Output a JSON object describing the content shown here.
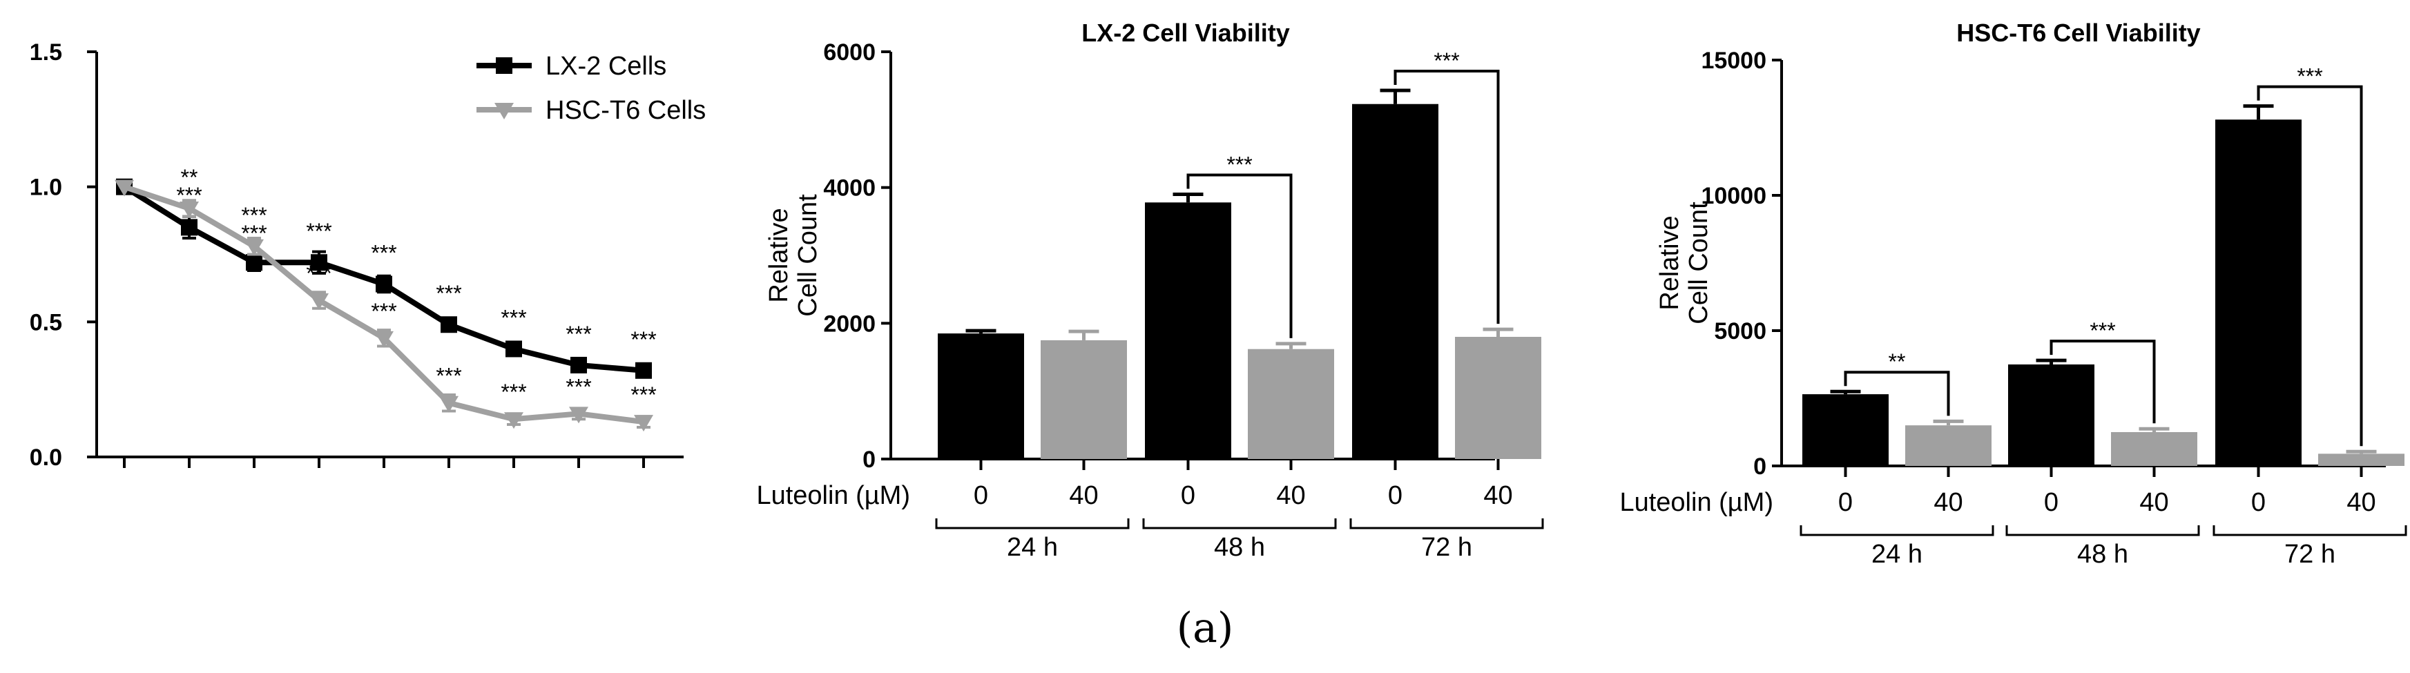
{
  "panel_label": "(a)",
  "colors": {
    "lx2": "#000000",
    "hsc": "#a0a0a0"
  },
  "chart_data": [
    {
      "id": "line",
      "type": "line",
      "title": "",
      "xlabel": "",
      "ylabel": "",
      "ylim": [
        0,
        1.5
      ],
      "yticks": [
        "0.0",
        "0.5",
        "1.0",
        "1.5"
      ],
      "x": [
        1,
        2,
        3,
        4,
        5,
        6,
        7,
        8,
        9
      ],
      "legend_position": "top-right",
      "series": [
        {
          "name": "LX-2 Cells",
          "values": [
            1.0,
            0.85,
            0.72,
            0.72,
            0.64,
            0.49,
            0.4,
            0.34,
            0.32
          ],
          "errors": [
            0,
            0.04,
            0.03,
            0.04,
            0.03,
            0.02,
            0.02,
            0.02,
            0.02
          ]
        },
        {
          "name": "HSC-T6 Cells",
          "values": [
            1.0,
            0.92,
            0.78,
            0.58,
            0.44,
            0.2,
            0.14,
            0.16,
            0.13
          ],
          "errors": [
            0,
            0.03,
            0.03,
            0.03,
            0.03,
            0.03,
            0.02,
            0.02,
            0.02
          ]
        }
      ],
      "annotations": [
        {
          "x": 2,
          "labels": [
            "**",
            "***"
          ]
        },
        {
          "x": 3,
          "labels": [
            "***",
            "***"
          ]
        },
        {
          "x": 4,
          "labels": [
            "***",
            "***"
          ]
        },
        {
          "x": 5,
          "labels": [
            "***",
            "***"
          ]
        },
        {
          "x": 6,
          "labels": [
            "***",
            "***"
          ]
        },
        {
          "x": 7,
          "labels": [
            "***",
            "***"
          ]
        },
        {
          "x": 8,
          "labels": [
            "***",
            "***"
          ]
        },
        {
          "x": 9,
          "labels": [
            "***",
            "***"
          ]
        }
      ]
    },
    {
      "id": "lx2",
      "type": "bar",
      "title": "LX-2 Cell Viability",
      "ylabel": "Relative Cell Count",
      "ylim": [
        0,
        6000
      ],
      "yticks": [
        "0",
        "2000",
        "4000",
        "6000"
      ],
      "xaxis_label": "Luteolin (µM)",
      "groups": [
        "24 h",
        "48 h",
        "72 h"
      ],
      "conditions": [
        "0",
        "40"
      ],
      "values": [
        [
          1850,
          1750
        ],
        [
          3780,
          1620
        ],
        [
          5230,
          1800
        ]
      ],
      "errors": [
        [
          40,
          130
        ],
        [
          120,
          80
        ],
        [
          200,
          110
        ]
      ],
      "significance": [
        null,
        "***",
        "***"
      ]
    },
    {
      "id": "hsc",
      "type": "bar",
      "title": "HSC-T6 Cell Viability",
      "ylabel": "Relative Cell Count",
      "ylim": [
        0,
        15000
      ],
      "yticks": [
        "0",
        "5000",
        "10000",
        "15000"
      ],
      "xaxis_label": "Luteolin (µM)",
      "groups": [
        "24 h",
        "48 h",
        "72 h"
      ],
      "conditions": [
        "0",
        "40"
      ],
      "values": [
        [
          2650,
          1500
        ],
        [
          3750,
          1250
        ],
        [
          12800,
          450
        ]
      ],
      "errors": [
        [
          100,
          150
        ],
        [
          150,
          120
        ],
        [
          500,
          80
        ]
      ],
      "significance": [
        "**",
        "***",
        "***"
      ]
    }
  ]
}
